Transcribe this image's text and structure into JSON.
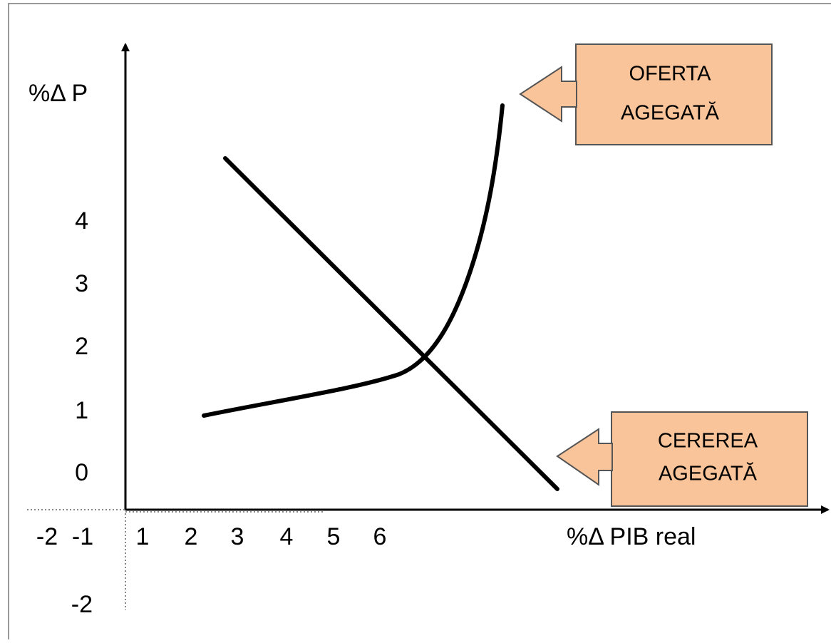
{
  "y_axis": {
    "label": "%Δ P",
    "ticks": [
      "4",
      "3",
      "2",
      "1",
      "0",
      "-2"
    ]
  },
  "x_axis": {
    "label": "%Δ PIB real",
    "ticks": [
      "-2",
      "-1",
      "1",
      "2",
      "3",
      "4",
      "5",
      "6"
    ]
  },
  "callouts": [
    {
      "lines": [
        "OFERTA",
        "AGEGATĂ"
      ]
    },
    {
      "lines": [
        "CEREREA",
        "AGEGATĂ"
      ]
    }
  ]
}
